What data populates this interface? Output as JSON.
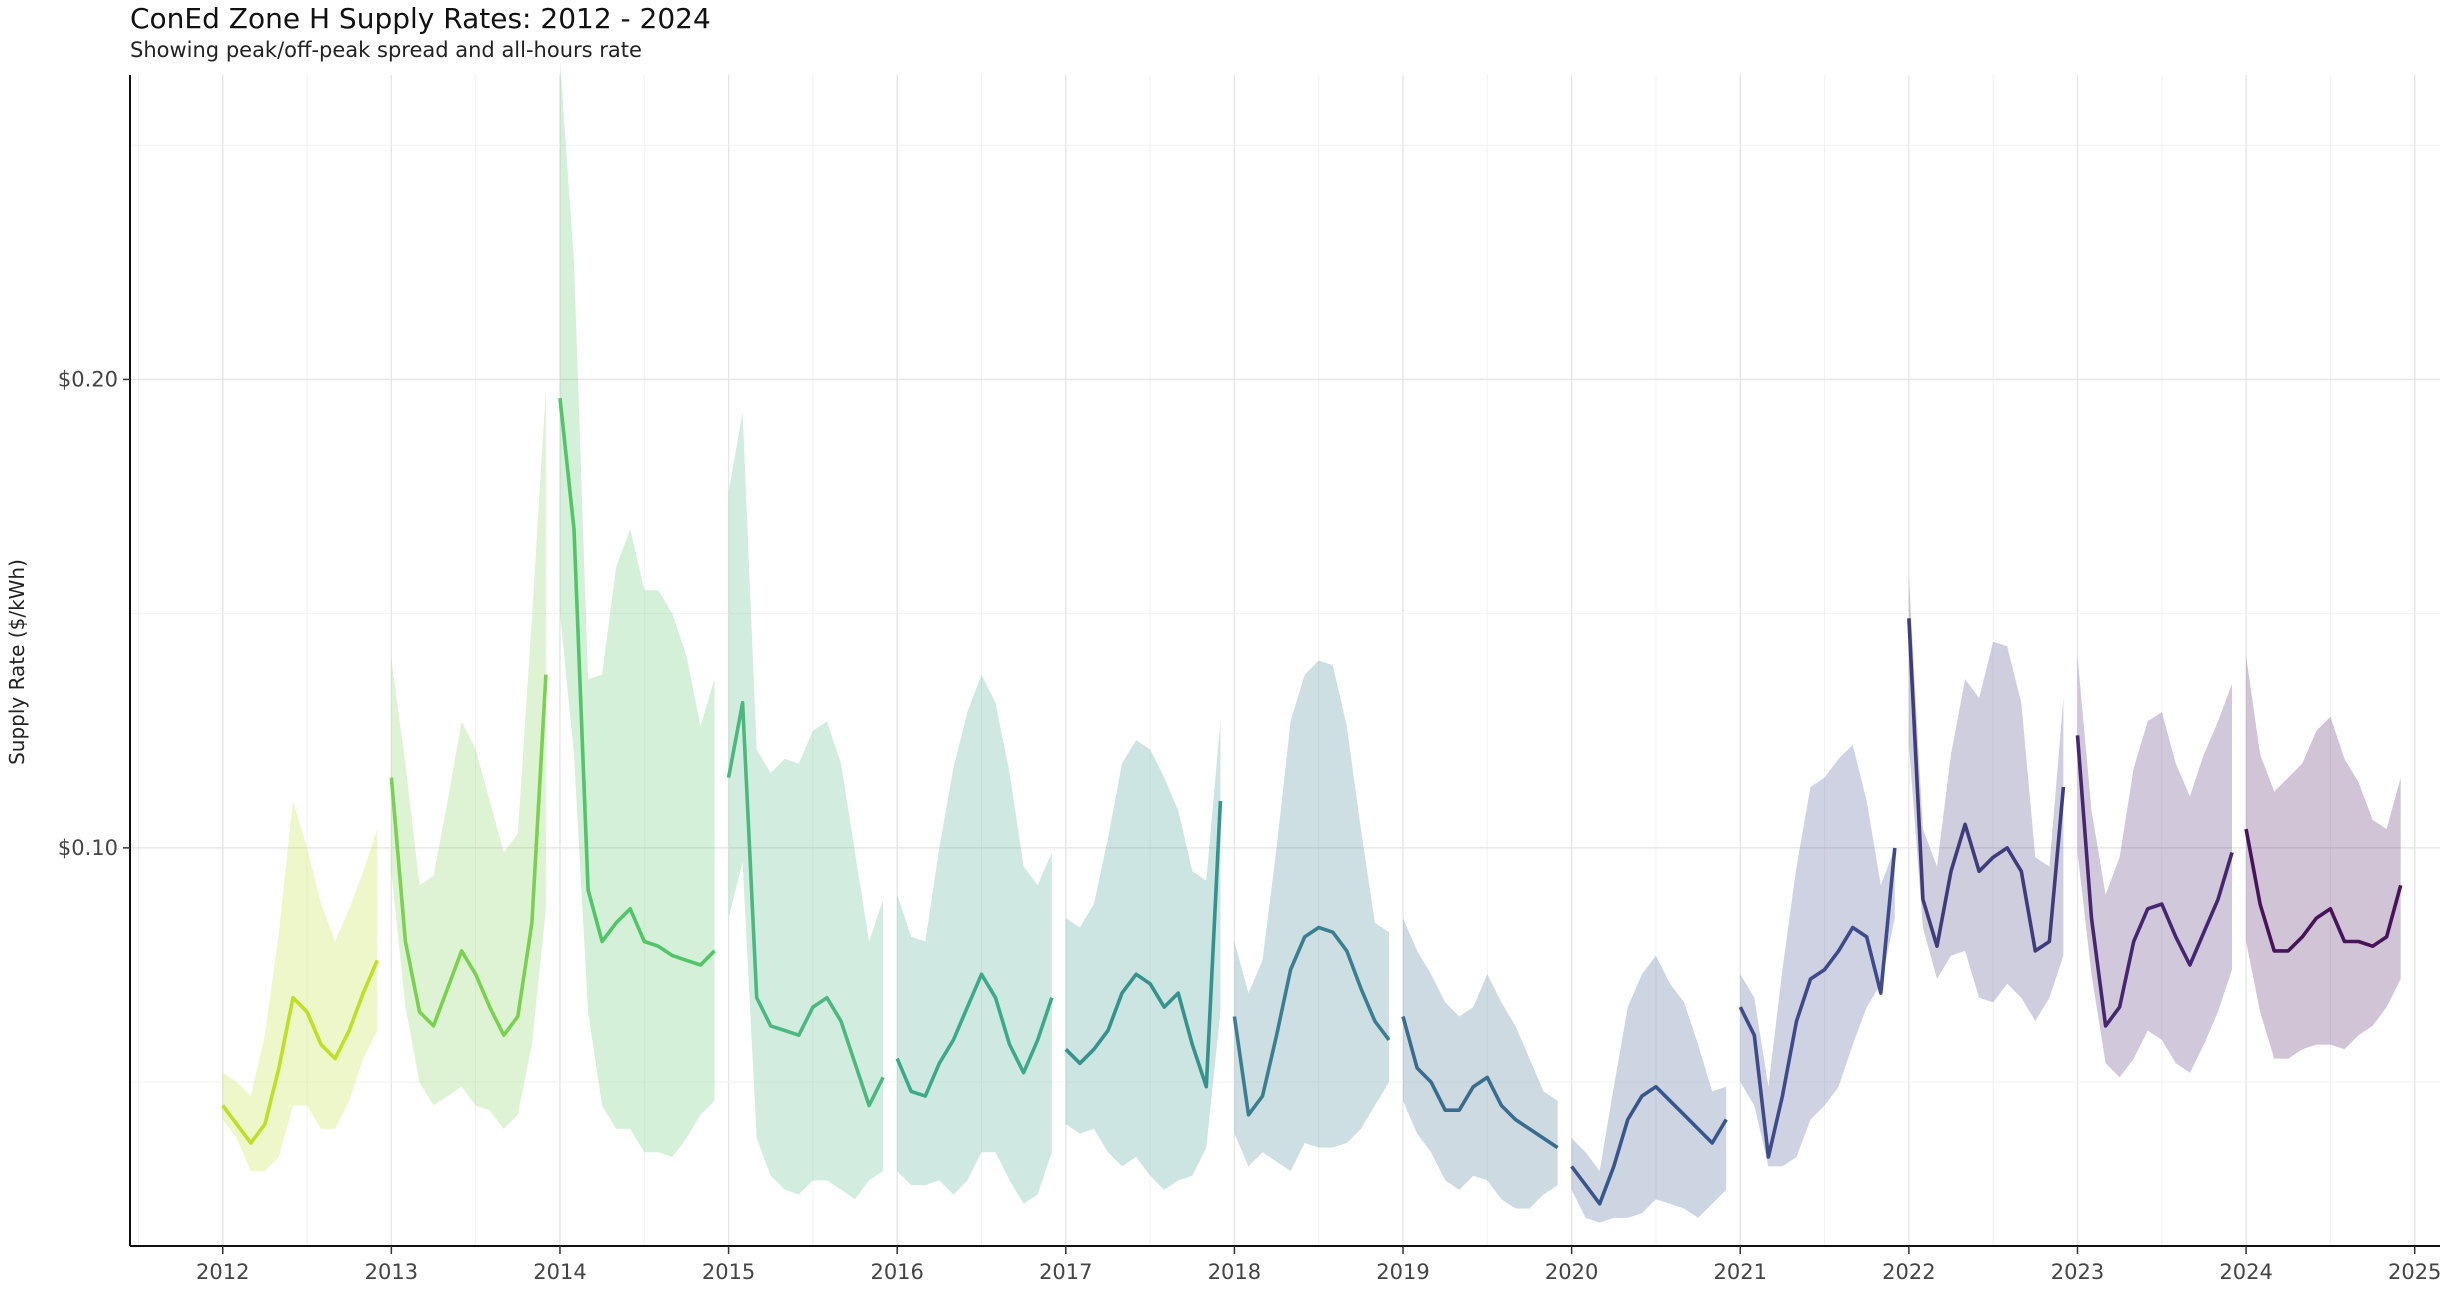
{
  "chart_data": {
    "type": "area",
    "title": "ConEd Zone H Supply Rates: 2012 - 2024",
    "subtitle": "Showing peak/off-peak spread and all-hours rate",
    "xlabel": "",
    "ylabel": "Supply Rate ($/kWh)",
    "xlim": [
      2011.45,
      2025.15
    ],
    "ylim": [
      0.015,
      0.265
    ],
    "x_ticks": [
      2012,
      2013,
      2014,
      2015,
      2016,
      2017,
      2018,
      2019,
      2020,
      2021,
      2022,
      2023,
      2024,
      2025
    ],
    "x_tick_labels": [
      "2012",
      "2013",
      "2014",
      "2015",
      "2016",
      "2017",
      "2018",
      "2019",
      "2020",
      "2021",
      "2022",
      "2023",
      "2024",
      "2025"
    ],
    "y_ticks": [
      0.1,
      0.2
    ],
    "y_tick_labels": [
      "$0.10",
      "$0.20"
    ],
    "y_minor": [
      0.05,
      0.15,
      0.25
    ],
    "grid": true,
    "legend": "none",
    "series": [
      {
        "year": 2012,
        "color": "#bddf26",
        "rate": [
          0.045,
          0.041,
          0.037,
          0.041,
          0.053,
          0.068,
          0.065,
          0.058,
          0.055,
          0.061,
          0.069,
          0.076
        ],
        "low": [
          0.042,
          0.038,
          0.031,
          0.031,
          0.034,
          0.045,
          0.045,
          0.04,
          0.04,
          0.046,
          0.055,
          0.061
        ],
        "high": [
          0.052,
          0.05,
          0.047,
          0.06,
          0.082,
          0.11,
          0.1,
          0.088,
          0.08,
          0.087,
          0.095,
          0.104
        ]
      },
      {
        "year": 2013,
        "color": "#7ad151",
        "rate": [
          0.115,
          0.08,
          0.065,
          0.062,
          0.07,
          0.078,
          0.073,
          0.066,
          0.06,
          0.064,
          0.084,
          0.137
        ],
        "low": [
          0.095,
          0.066,
          0.05,
          0.045,
          0.047,
          0.049,
          0.045,
          0.044,
          0.04,
          0.043,
          0.058,
          0.087
        ],
        "high": [
          0.14,
          0.118,
          0.092,
          0.094,
          0.11,
          0.127,
          0.121,
          0.11,
          0.099,
          0.103,
          0.149,
          0.198
        ]
      },
      {
        "year": 2014,
        "color": "#52c569",
        "rate": [
          0.196,
          0.168,
          0.091,
          0.08,
          0.084,
          0.087,
          0.08,
          0.079,
          0.077,
          0.076,
          0.075,
          0.078
        ],
        "low": [
          0.15,
          0.12,
          0.065,
          0.045,
          0.04,
          0.04,
          0.035,
          0.035,
          0.034,
          0.038,
          0.043,
          0.046
        ],
        "high": [
          0.268,
          0.225,
          0.136,
          0.137,
          0.16,
          0.168,
          0.155,
          0.155,
          0.15,
          0.141,
          0.126,
          0.136
        ]
      },
      {
        "year": 2015,
        "color": "#4cb87f",
        "rate": [
          0.115,
          0.131,
          0.068,
          0.062,
          0.061,
          0.06,
          0.066,
          0.068,
          0.063,
          0.054,
          0.045,
          0.051
        ],
        "low": [
          0.085,
          0.097,
          0.038,
          0.03,
          0.027,
          0.026,
          0.029,
          0.029,
          0.027,
          0.025,
          0.029,
          0.031
        ],
        "high": [
          0.176,
          0.193,
          0.121,
          0.116,
          0.119,
          0.118,
          0.125,
          0.127,
          0.118,
          0.099,
          0.08,
          0.089
        ]
      },
      {
        "year": 2016,
        "color": "#3ea98a",
        "rate": [
          0.055,
          0.048,
          0.047,
          0.054,
          0.059,
          0.066,
          0.073,
          0.068,
          0.058,
          0.052,
          0.059,
          0.068
        ],
        "low": [
          0.031,
          0.028,
          0.028,
          0.029,
          0.026,
          0.029,
          0.035,
          0.035,
          0.029,
          0.024,
          0.026,
          0.035
        ],
        "high": [
          0.09,
          0.081,
          0.08,
          0.1,
          0.117,
          0.129,
          0.137,
          0.131,
          0.116,
          0.096,
          0.092,
          0.099
        ]
      },
      {
        "year": 2017,
        "color": "#35928c",
        "rate": [
          0.057,
          0.054,
          0.057,
          0.061,
          0.069,
          0.073,
          0.071,
          0.066,
          0.069,
          0.058,
          0.049,
          0.11
        ],
        "low": [
          0.041,
          0.039,
          0.04,
          0.035,
          0.032,
          0.034,
          0.03,
          0.027,
          0.029,
          0.03,
          0.036,
          0.065
        ],
        "high": [
          0.085,
          0.083,
          0.088,
          0.102,
          0.118,
          0.123,
          0.121,
          0.115,
          0.108,
          0.095,
          0.093,
          0.127
        ]
      },
      {
        "year": 2018,
        "color": "#3b7f8e",
        "rate": [
          0.064,
          0.043,
          0.047,
          0.06,
          0.074,
          0.081,
          0.083,
          0.082,
          0.078,
          0.07,
          0.063,
          0.059
        ],
        "low": [
          0.039,
          0.032,
          0.035,
          0.033,
          0.031,
          0.037,
          0.036,
          0.036,
          0.037,
          0.04,
          0.045,
          0.05
        ],
        "high": [
          0.08,
          0.069,
          0.076,
          0.1,
          0.127,
          0.137,
          0.14,
          0.139,
          0.126,
          0.104,
          0.084,
          0.082
        ]
      },
      {
        "year": 2019,
        "color": "#3a6c8d",
        "rate": [
          0.064,
          0.053,
          0.05,
          0.044,
          0.044,
          0.049,
          0.051,
          0.045,
          0.042,
          0.04,
          0.038,
          0.036
        ],
        "low": [
          0.046,
          0.039,
          0.035,
          0.029,
          0.027,
          0.03,
          0.029,
          0.025,
          0.023,
          0.023,
          0.026,
          0.028
        ],
        "high": [
          0.085,
          0.078,
          0.073,
          0.067,
          0.064,
          0.066,
          0.073,
          0.067,
          0.062,
          0.055,
          0.048,
          0.046
        ]
      },
      {
        "year": 2020,
        "color": "#39568c",
        "rate": [
          0.032,
          0.028,
          0.024,
          0.032,
          0.042,
          0.047,
          0.049,
          0.046,
          0.043,
          0.04,
          0.037,
          0.042
        ],
        "low": [
          0.027,
          0.021,
          0.02,
          0.021,
          0.021,
          0.022,
          0.025,
          0.024,
          0.023,
          0.021,
          0.024,
          0.027
        ],
        "high": [
          0.038,
          0.035,
          0.031,
          0.049,
          0.066,
          0.073,
          0.077,
          0.071,
          0.067,
          0.058,
          0.048,
          0.049
        ]
      },
      {
        "year": 2021,
        "color": "#3f4a8a",
        "rate": [
          0.066,
          0.06,
          0.034,
          0.047,
          0.063,
          0.072,
          0.074,
          0.078,
          0.083,
          0.081,
          0.069,
          0.1
        ],
        "low": [
          0.05,
          0.045,
          0.032,
          0.032,
          0.034,
          0.042,
          0.045,
          0.049,
          0.058,
          0.066,
          0.071,
          0.085
        ],
        "high": [
          0.073,
          0.068,
          0.049,
          0.074,
          0.096,
          0.113,
          0.115,
          0.119,
          0.122,
          0.11,
          0.092,
          0.1
        ]
      },
      {
        "year": 2022,
        "color": "#403b7b",
        "rate": [
          0.149,
          0.089,
          0.079,
          0.095,
          0.105,
          0.095,
          0.098,
          0.1,
          0.095,
          0.078,
          0.08,
          0.113
        ],
        "low": [
          0.122,
          0.083,
          0.072,
          0.077,
          0.078,
          0.068,
          0.067,
          0.071,
          0.068,
          0.063,
          0.068,
          0.077
        ],
        "high": [
          0.158,
          0.104,
          0.096,
          0.12,
          0.136,
          0.132,
          0.144,
          0.143,
          0.131,
          0.098,
          0.096,
          0.132
        ]
      },
      {
        "year": 2023,
        "color": "#46276f",
        "rate": [
          0.124,
          0.085,
          0.062,
          0.066,
          0.08,
          0.087,
          0.088,
          0.081,
          0.075,
          0.082,
          0.089,
          0.099
        ],
        "low": [
          0.099,
          0.073,
          0.054,
          0.051,
          0.055,
          0.061,
          0.059,
          0.054,
          0.052,
          0.058,
          0.065,
          0.074
        ],
        "high": [
          0.141,
          0.108,
          0.09,
          0.098,
          0.117,
          0.127,
          0.129,
          0.118,
          0.111,
          0.12,
          0.127,
          0.135
        ]
      },
      {
        "year": 2024,
        "color": "#47145a",
        "rate": [
          0.104,
          0.088,
          0.078,
          0.078,
          0.081,
          0.085,
          0.087,
          0.08,
          0.08,
          0.079,
          0.081,
          0.092
        ],
        "low": [
          0.08,
          0.065,
          0.055,
          0.055,
          0.057,
          0.058,
          0.058,
          0.057,
          0.06,
          0.062,
          0.066,
          0.072
        ],
        "high": [
          0.141,
          0.12,
          0.112,
          0.115,
          0.118,
          0.125,
          0.128,
          0.119,
          0.114,
          0.106,
          0.104,
          0.115
        ]
      }
    ]
  }
}
